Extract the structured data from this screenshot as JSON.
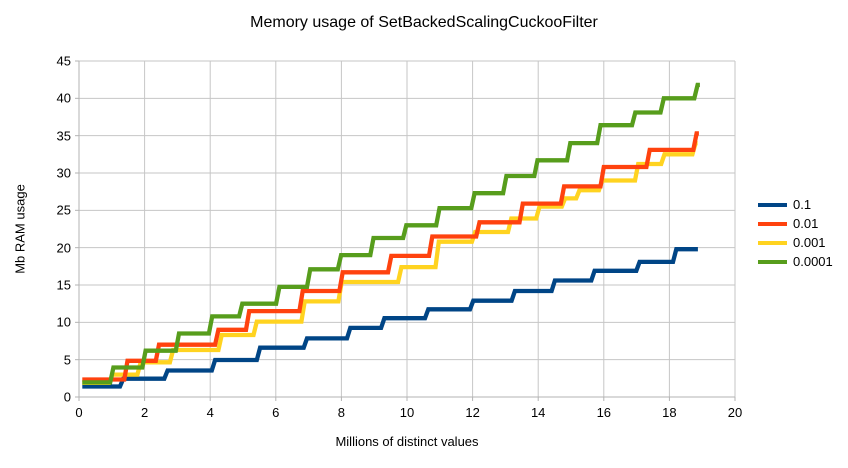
{
  "title": "Memory usage of SetBackedScalingCuckooFilter",
  "chart_data": {
    "type": "line",
    "title": "Memory usage of SetBackedScalingCuckooFilter",
    "xlabel": "Millions of distinct values",
    "ylabel": "Mb RAM usage",
    "xlim": [
      0,
      20
    ],
    "ylim": [
      0,
      45
    ],
    "x_ticks": [
      0,
      2,
      4,
      6,
      8,
      10,
      12,
      14,
      16,
      18,
      20
    ],
    "y_ticks": [
      0,
      5,
      10,
      15,
      20,
      25,
      30,
      35,
      40,
      45
    ],
    "grid": true,
    "legend_position": "right",
    "line_style": "step",
    "series": [
      {
        "name": "0.1",
        "color": "#004586",
        "points": [
          [
            0.1,
            1.4
          ],
          [
            1.25,
            1.4
          ],
          [
            1.35,
            2.45
          ],
          [
            2.6,
            2.45
          ],
          [
            2.7,
            3.55
          ],
          [
            4.05,
            3.55
          ],
          [
            4.15,
            4.95
          ],
          [
            5.42,
            4.95
          ],
          [
            5.52,
            6.6
          ],
          [
            6.85,
            6.6
          ],
          [
            6.95,
            7.85
          ],
          [
            8.17,
            7.85
          ],
          [
            8.27,
            9.25
          ],
          [
            9.21,
            9.25
          ],
          [
            9.31,
            10.55
          ],
          [
            10.55,
            10.55
          ],
          [
            10.65,
            11.75
          ],
          [
            11.92,
            11.75
          ],
          [
            12.02,
            12.9
          ],
          [
            13.19,
            12.9
          ],
          [
            13.29,
            14.2
          ],
          [
            14.41,
            14.2
          ],
          [
            14.51,
            15.6
          ],
          [
            15.62,
            15.6
          ],
          [
            15.72,
            16.9
          ],
          [
            16.99,
            16.9
          ],
          [
            17.09,
            18.1
          ],
          [
            18.11,
            18.1
          ],
          [
            18.21,
            19.8
          ],
          [
            18.87,
            19.8
          ]
        ]
      },
      {
        "name": "0.01",
        "color": "#ff420e",
        "points": [
          [
            0.1,
            2.35
          ],
          [
            1.38,
            2.35
          ],
          [
            1.48,
            4.85
          ],
          [
            2.34,
            4.85
          ],
          [
            2.44,
            7.0
          ],
          [
            4.15,
            7.0
          ],
          [
            4.25,
            9.0
          ],
          [
            5.09,
            9.0
          ],
          [
            5.19,
            11.5
          ],
          [
            6.72,
            11.5
          ],
          [
            6.82,
            14.2
          ],
          [
            7.94,
            14.2
          ],
          [
            8.04,
            16.7
          ],
          [
            9.42,
            16.7
          ],
          [
            9.52,
            18.9
          ],
          [
            10.67,
            18.9
          ],
          [
            10.77,
            21.5
          ],
          [
            12.11,
            21.5
          ],
          [
            12.21,
            23.4
          ],
          [
            13.43,
            23.4
          ],
          [
            13.53,
            25.9
          ],
          [
            14.69,
            25.9
          ],
          [
            14.79,
            28.2
          ],
          [
            15.9,
            28.2
          ],
          [
            16.0,
            30.8
          ],
          [
            17.3,
            30.8
          ],
          [
            17.4,
            33.1
          ],
          [
            18.73,
            33.1
          ],
          [
            18.83,
            35.3
          ],
          [
            18.9,
            35.3
          ]
        ]
      },
      {
        "name": "0.001",
        "color": "#ffd320",
        "points": [
          [
            0.1,
            1.9
          ],
          [
            0.92,
            1.9
          ],
          [
            1.02,
            3.0
          ],
          [
            1.78,
            3.0
          ],
          [
            1.88,
            4.65
          ],
          [
            2.77,
            4.65
          ],
          [
            2.87,
            6.3
          ],
          [
            4.25,
            6.3
          ],
          [
            4.35,
            8.3
          ],
          [
            5.32,
            8.3
          ],
          [
            5.42,
            10.1
          ],
          [
            6.78,
            10.1
          ],
          [
            6.88,
            12.8
          ],
          [
            7.91,
            12.8
          ],
          [
            8.01,
            15.4
          ],
          [
            9.73,
            15.4
          ],
          [
            9.83,
            17.4
          ],
          [
            10.87,
            17.4
          ],
          [
            10.97,
            20.8
          ],
          [
            11.98,
            20.8
          ],
          [
            12.08,
            22.1
          ],
          [
            13.08,
            22.1
          ],
          [
            13.18,
            23.9
          ],
          [
            13.94,
            23.9
          ],
          [
            14.04,
            25.5
          ],
          [
            14.72,
            25.5
          ],
          [
            14.82,
            26.6
          ],
          [
            15.16,
            26.6
          ],
          [
            15.26,
            27.7
          ],
          [
            15.85,
            27.7
          ],
          [
            15.95,
            29.0
          ],
          [
            16.95,
            29.0
          ],
          [
            17.05,
            31.2
          ],
          [
            17.75,
            31.2
          ],
          [
            17.85,
            32.5
          ],
          [
            18.7,
            32.5
          ],
          [
            18.8,
            34.0
          ],
          [
            18.86,
            34.0
          ]
        ]
      },
      {
        "name": "0.0001",
        "color": "#579d1c",
        "points": [
          [
            0.1,
            1.95
          ],
          [
            0.95,
            1.95
          ],
          [
            1.05,
            3.95
          ],
          [
            1.93,
            3.95
          ],
          [
            2.03,
            6.2
          ],
          [
            2.95,
            6.2
          ],
          [
            3.05,
            8.5
          ],
          [
            3.96,
            8.5
          ],
          [
            4.06,
            10.8
          ],
          [
            4.88,
            10.8
          ],
          [
            4.98,
            12.5
          ],
          [
            6.01,
            12.5
          ],
          [
            6.11,
            14.75
          ],
          [
            6.95,
            14.75
          ],
          [
            7.05,
            17.1
          ],
          [
            7.89,
            17.1
          ],
          [
            7.99,
            19.0
          ],
          [
            8.88,
            19.0
          ],
          [
            8.98,
            21.3
          ],
          [
            9.88,
            21.3
          ],
          [
            9.98,
            23.0
          ],
          [
            10.89,
            23.0
          ],
          [
            10.99,
            25.3
          ],
          [
            11.96,
            25.3
          ],
          [
            12.06,
            27.3
          ],
          [
            12.93,
            27.3
          ],
          [
            13.03,
            29.6
          ],
          [
            13.88,
            29.6
          ],
          [
            13.98,
            31.7
          ],
          [
            14.88,
            31.7
          ],
          [
            14.98,
            34.0
          ],
          [
            15.8,
            34.0
          ],
          [
            15.9,
            36.4
          ],
          [
            16.86,
            36.4
          ],
          [
            16.96,
            38.1
          ],
          [
            17.73,
            38.1
          ],
          [
            17.83,
            40.0
          ],
          [
            18.76,
            40.0
          ],
          [
            18.86,
            41.8
          ],
          [
            18.93,
            41.8
          ]
        ]
      }
    ]
  },
  "legend": {
    "items": [
      {
        "label": "0.1",
        "color": "#004586"
      },
      {
        "label": "0.01",
        "color": "#ff420e"
      },
      {
        "label": "0.001",
        "color": "#ffd320"
      },
      {
        "label": "0.0001",
        "color": "#579d1c"
      }
    ]
  },
  "style_colors": {
    "gridline": "#c6c6c6",
    "axis": "#b3b3b3",
    "text": "#000000",
    "background": "#ffffff"
  }
}
